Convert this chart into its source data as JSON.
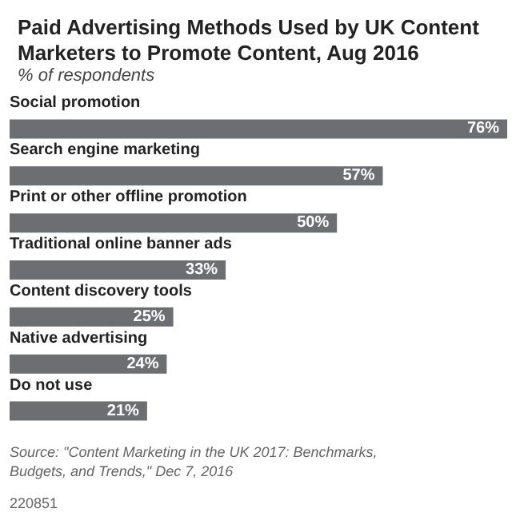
{
  "chart_data": {
    "type": "bar",
    "orientation": "horizontal",
    "title": "Paid Advertising Methods Used by UK Content Marketers to Promote Content, Aug 2016",
    "subtitle": "% of respondents",
    "categories": [
      "Social promotion",
      "Search engine marketing",
      "Print or other offline promotion",
      "Traditional online banner ads",
      "Content discovery tools",
      "Native advertising",
      "Do not use"
    ],
    "values": [
      76,
      57,
      50,
      33,
      25,
      24,
      21
    ],
    "value_labels": [
      "76%",
      "57%",
      "50%",
      "33%",
      "25%",
      "24%",
      "21%"
    ],
    "color": "#6d6e71",
    "annotations": [
      "Source: \"Content Marketing in the UK 2017: Benchmarks, Budgets, and Trends,\" Dec 7, 2016",
      "220851"
    ]
  }
}
